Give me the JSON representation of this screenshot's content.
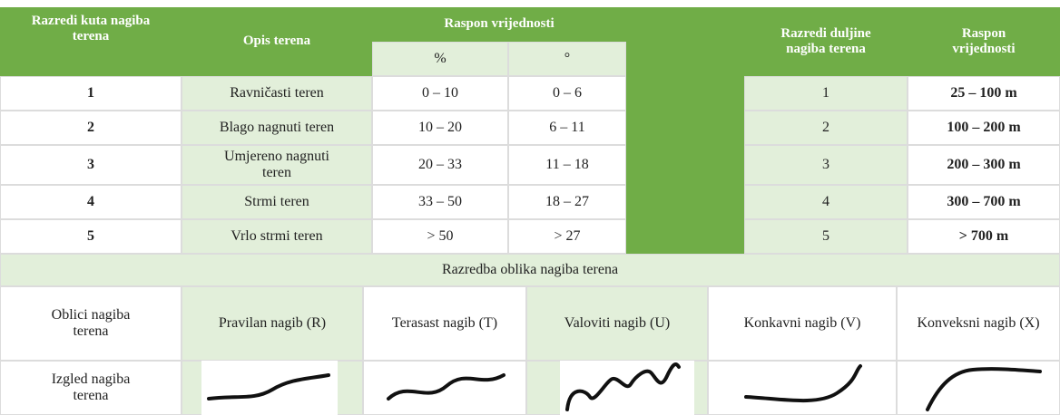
{
  "header": {
    "slope_class": "Razredi kuta nagiba terena",
    "terrain": "Opis terena",
    "range": "Raspon vrijednosti",
    "percent": "%",
    "degree": "°",
    "length_class": "Razredi duljine nagiba terena",
    "length_range": "Raspon vrijednosti"
  },
  "table": {
    "rows": [
      [
        "1",
        "Ravničasti teren",
        "0 – 10",
        "0 – 6",
        "1",
        "25 – 100 m"
      ],
      [
        "2",
        "Blago nagnuti teren",
        "10 – 20",
        "6 – 11",
        "2",
        "100 – 200 m"
      ],
      [
        "3",
        "Umjereno nagnuti teren",
        "20 – 33",
        "11 – 18",
        "3",
        "200 – 300 m"
      ],
      [
        "4",
        "Strmi teren",
        "33 – 50",
        "18 – 27",
        "4",
        "300 – 700 m"
      ],
      [
        "5",
        "Vrlo strmi teren",
        "> 50",
        "> 27",
        "5",
        "> 700 m"
      ]
    ]
  },
  "shape_section": {
    "title": "Razredba oblika nagiba terena",
    "row_label": "Oblici nagiba terena",
    "shapes": [
      "Pravilan nagib (R)",
      "Terasast nagib (T)",
      "Valoviti nagib (U)",
      "Konkavni nagib (V)",
      "Konveksni nagib (X)"
    ],
    "appearance_label": "Izgled nagiba terena"
  }
}
